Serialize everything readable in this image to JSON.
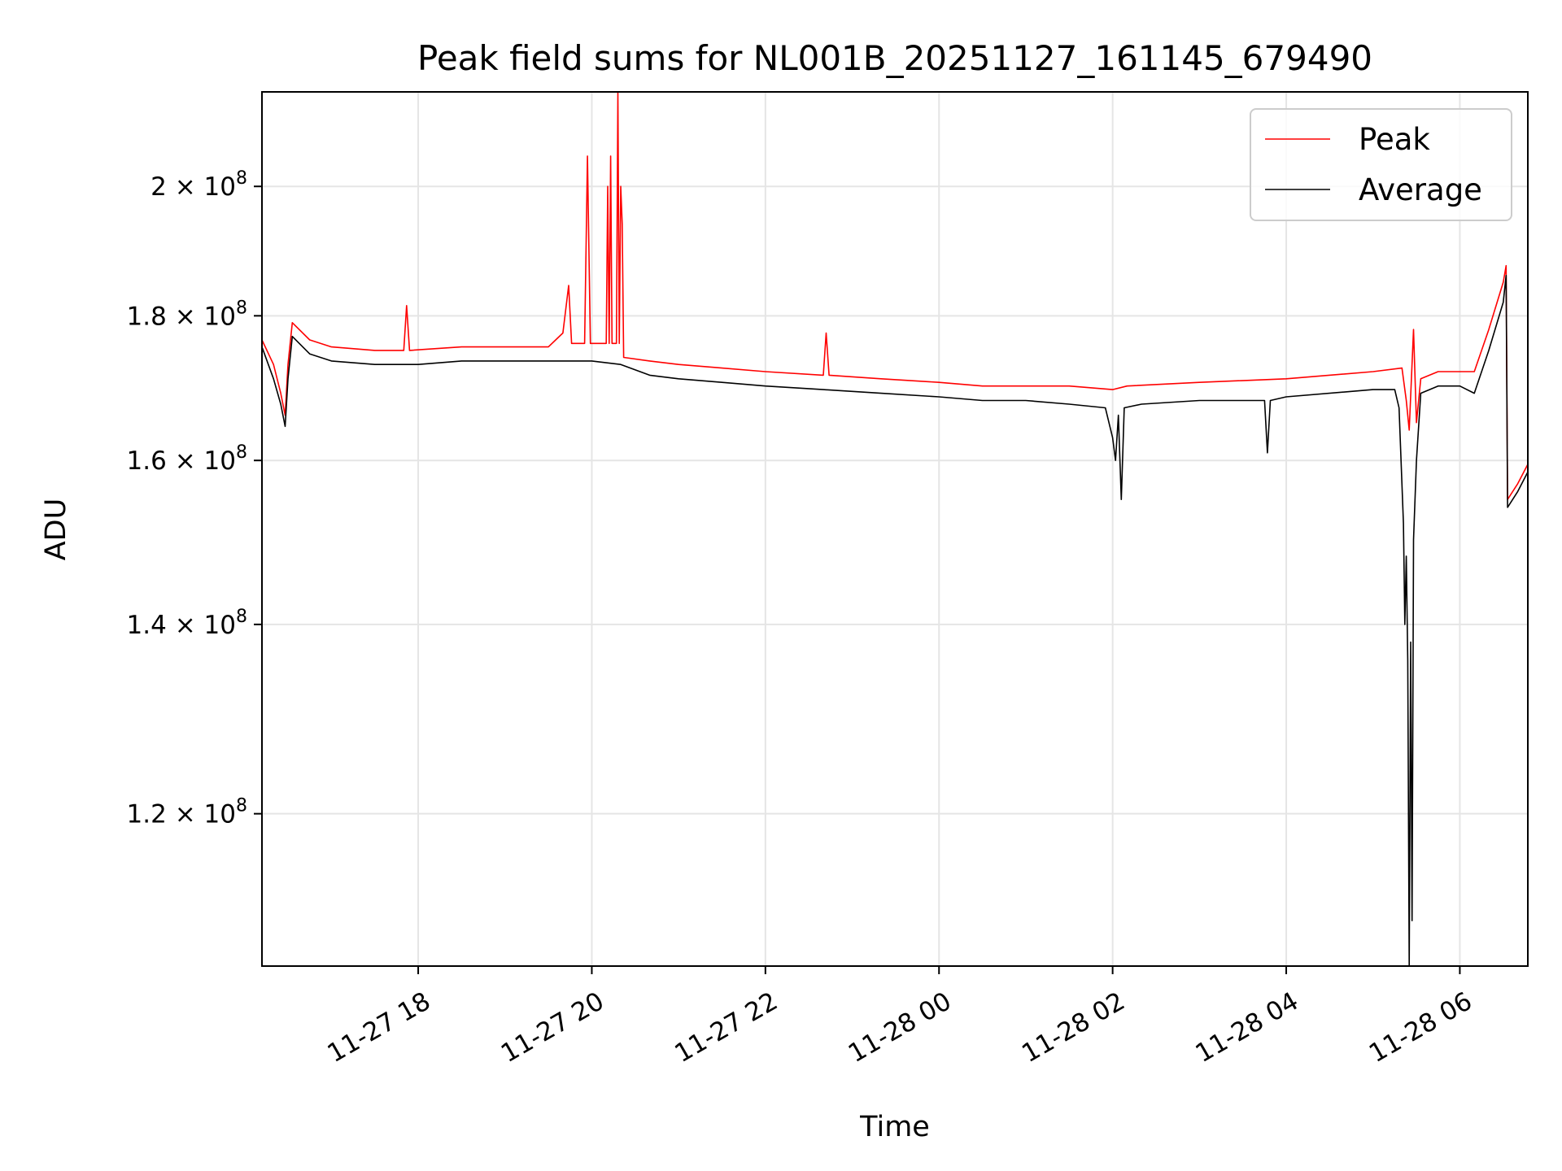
{
  "chart_data": {
    "type": "line",
    "title": "Peak field sums for NL001B_20251127_161145_679490",
    "xlabel": "Time",
    "ylabel": "ADU",
    "y_scale": "log",
    "grid": true,
    "legend_placement": "top-right",
    "xlim": [
      "2025-11-27 16:12",
      "2025-11-28 06:47"
    ],
    "ylim": [
      106000000,
      216000000
    ],
    "x_ticks": [
      {
        "value": "2025-11-27 18:00",
        "label": "11-27 18"
      },
      {
        "value": "2025-11-27 20:00",
        "label": "11-27 20"
      },
      {
        "value": "2025-11-27 22:00",
        "label": "11-27 22"
      },
      {
        "value": "2025-11-28 00:00",
        "label": "11-28 00"
      },
      {
        "value": "2025-11-28 02:00",
        "label": "11-28 02"
      },
      {
        "value": "2025-11-28 04:00",
        "label": "11-28 04"
      },
      {
        "value": "2025-11-28 06:00",
        "label": "11-28 06"
      }
    ],
    "y_ticks": [
      {
        "value": 120000000,
        "mantissa": "1.2",
        "base": "10",
        "exp": "8"
      },
      {
        "value": 140000000,
        "mantissa": "1.4",
        "base": "10",
        "exp": "8"
      },
      {
        "value": 160000000,
        "mantissa": "1.6",
        "base": "10",
        "exp": "8"
      },
      {
        "value": 180000000,
        "mantissa": "1.8",
        "base": "10",
        "exp": "8"
      },
      {
        "value": 200000000,
        "mantissa": "2",
        "base": "10",
        "exp": "8"
      }
    ],
    "series": [
      {
        "name": "Peak",
        "color": "#ff0000",
        "points": [
          [
            "2025-11-27 16:12",
            176500000
          ],
          [
            "2025-11-27 16:20",
            173000000
          ],
          [
            "2025-11-27 16:25",
            169000000
          ],
          [
            "2025-11-27 16:28",
            166000000
          ],
          [
            "2025-11-27 16:30",
            173000000
          ],
          [
            "2025-11-27 16:33",
            179000000
          ],
          [
            "2025-11-27 16:45",
            176500000
          ],
          [
            "2025-11-27 17:00",
            175500000
          ],
          [
            "2025-11-27 17:30",
            175000000
          ],
          [
            "2025-11-27 17:50",
            175000000
          ],
          [
            "2025-11-27 17:52",
            181500000
          ],
          [
            "2025-11-27 17:54",
            175000000
          ],
          [
            "2025-11-27 18:30",
            175500000
          ],
          [
            "2025-11-27 19:00",
            175500000
          ],
          [
            "2025-11-27 19:30",
            175500000
          ],
          [
            "2025-11-27 19:40",
            177500000
          ],
          [
            "2025-11-27 19:44",
            184500000
          ],
          [
            "2025-11-27 19:46",
            176000000
          ],
          [
            "2025-11-27 19:55",
            176000000
          ],
          [
            "2025-11-27 19:57",
            205000000
          ],
          [
            "2025-11-27 19:59",
            176000000
          ],
          [
            "2025-11-27 20:10",
            176000000
          ],
          [
            "2025-11-27 20:11",
            200000000
          ],
          [
            "2025-11-27 20:12",
            176000000
          ],
          [
            "2025-11-27 20:13",
            205000000
          ],
          [
            "2025-11-27 20:14",
            176000000
          ],
          [
            "2025-11-27 20:17",
            176000000
          ],
          [
            "2025-11-27 20:18",
            216000000
          ],
          [
            "2025-11-27 20:19",
            176000000
          ],
          [
            "2025-11-27 20:20",
            200000000
          ],
          [
            "2025-11-27 20:21",
            194000000
          ],
          [
            "2025-11-27 20:22",
            174000000
          ],
          [
            "2025-11-27 20:40",
            173500000
          ],
          [
            "2025-11-27 21:00",
            173000000
          ],
          [
            "2025-11-27 21:30",
            172500000
          ],
          [
            "2025-11-27 22:00",
            172000000
          ],
          [
            "2025-11-27 22:40",
            171500000
          ],
          [
            "2025-11-27 22:42",
            177500000
          ],
          [
            "2025-11-27 22:44",
            171500000
          ],
          [
            "2025-11-27 23:20",
            171000000
          ],
          [
            "2025-11-28 00:00",
            170500000
          ],
          [
            "2025-11-28 00:30",
            170000000
          ],
          [
            "2025-11-28 01:00",
            170000000
          ],
          [
            "2025-11-28 01:30",
            170000000
          ],
          [
            "2025-11-28 02:00",
            169500000
          ],
          [
            "2025-11-28 02:10",
            170000000
          ],
          [
            "2025-11-28 03:00",
            170500000
          ],
          [
            "2025-11-28 04:00",
            171000000
          ],
          [
            "2025-11-28 05:00",
            172000000
          ],
          [
            "2025-11-28 05:20",
            172500000
          ],
          [
            "2025-11-28 05:23",
            168000000
          ],
          [
            "2025-11-28 05:25",
            164000000
          ],
          [
            "2025-11-28 05:28",
            178000000
          ],
          [
            "2025-11-28 05:30",
            165000000
          ],
          [
            "2025-11-28 05:33",
            171000000
          ],
          [
            "2025-11-28 05:45",
            172000000
          ],
          [
            "2025-11-28 06:00",
            172000000
          ],
          [
            "2025-11-28 06:10",
            172000000
          ],
          [
            "2025-11-28 06:20",
            178000000
          ],
          [
            "2025-11-28 06:30",
            185000000
          ],
          [
            "2025-11-28 06:32",
            187500000
          ],
          [
            "2025-11-28 06:33",
            155000000
          ],
          [
            "2025-11-28 06:40",
            157000000
          ],
          [
            "2025-11-28 06:47",
            159500000
          ]
        ]
      },
      {
        "name": "Average",
        "color": "#000000",
        "points": [
          [
            "2025-11-27 16:12",
            175500000
          ],
          [
            "2025-11-27 16:20",
            171000000
          ],
          [
            "2025-11-27 16:25",
            167500000
          ],
          [
            "2025-11-27 16:28",
            164500000
          ],
          [
            "2025-11-27 16:30",
            171000000
          ],
          [
            "2025-11-27 16:33",
            177000000
          ],
          [
            "2025-11-27 16:45",
            174500000
          ],
          [
            "2025-11-27 17:00",
            173500000
          ],
          [
            "2025-11-27 17:30",
            173000000
          ],
          [
            "2025-11-27 18:00",
            173000000
          ],
          [
            "2025-11-27 18:30",
            173500000
          ],
          [
            "2025-11-27 19:00",
            173500000
          ],
          [
            "2025-11-27 19:30",
            173500000
          ],
          [
            "2025-11-27 20:00",
            173500000
          ],
          [
            "2025-11-27 20:20",
            173000000
          ],
          [
            "2025-11-27 20:40",
            171500000
          ],
          [
            "2025-11-27 21:00",
            171000000
          ],
          [
            "2025-11-27 21:30",
            170500000
          ],
          [
            "2025-11-27 22:00",
            170000000
          ],
          [
            "2025-11-27 22:40",
            169500000
          ],
          [
            "2025-11-27 23:20",
            169000000
          ],
          [
            "2025-11-28 00:00",
            168500000
          ],
          [
            "2025-11-28 00:30",
            168000000
          ],
          [
            "2025-11-28 01:00",
            168000000
          ],
          [
            "2025-11-28 01:30",
            167500000
          ],
          [
            "2025-11-28 01:55",
            167000000
          ],
          [
            "2025-11-28 02:00",
            163000000
          ],
          [
            "2025-11-28 02:02",
            160000000
          ],
          [
            "2025-11-28 02:04",
            166000000
          ],
          [
            "2025-11-28 02:06",
            155000000
          ],
          [
            "2025-11-28 02:08",
            167000000
          ],
          [
            "2025-11-28 02:20",
            167500000
          ],
          [
            "2025-11-28 03:00",
            168000000
          ],
          [
            "2025-11-28 03:45",
            168000000
          ],
          [
            "2025-11-28 03:47",
            161000000
          ],
          [
            "2025-11-28 03:49",
            168000000
          ],
          [
            "2025-11-28 04:00",
            168500000
          ],
          [
            "2025-11-28 05:00",
            169500000
          ],
          [
            "2025-11-28 05:15",
            169500000
          ],
          [
            "2025-11-28 05:18",
            167000000
          ],
          [
            "2025-11-28 05:21",
            152000000
          ],
          [
            "2025-11-28 05:22",
            140000000
          ],
          [
            "2025-11-28 05:23",
            148000000
          ],
          [
            "2025-11-28 05:24",
            136000000
          ],
          [
            "2025-11-28 05:25",
            106000000
          ],
          [
            "2025-11-28 05:26",
            138000000
          ],
          [
            "2025-11-28 05:27",
            110000000
          ],
          [
            "2025-11-28 05:28",
            150000000
          ],
          [
            "2025-11-28 05:30",
            160000000
          ],
          [
            "2025-11-28 05:33",
            169000000
          ],
          [
            "2025-11-28 05:45",
            170000000
          ],
          [
            "2025-11-28 06:00",
            170000000
          ],
          [
            "2025-11-28 06:10",
            169000000
          ],
          [
            "2025-11-28 06:20",
            175000000
          ],
          [
            "2025-11-28 06:30",
            182000000
          ],
          [
            "2025-11-28 06:32",
            186000000
          ],
          [
            "2025-11-28 06:33",
            154000000
          ],
          [
            "2025-11-28 06:40",
            156000000
          ],
          [
            "2025-11-28 06:47",
            158500000
          ]
        ]
      }
    ]
  }
}
